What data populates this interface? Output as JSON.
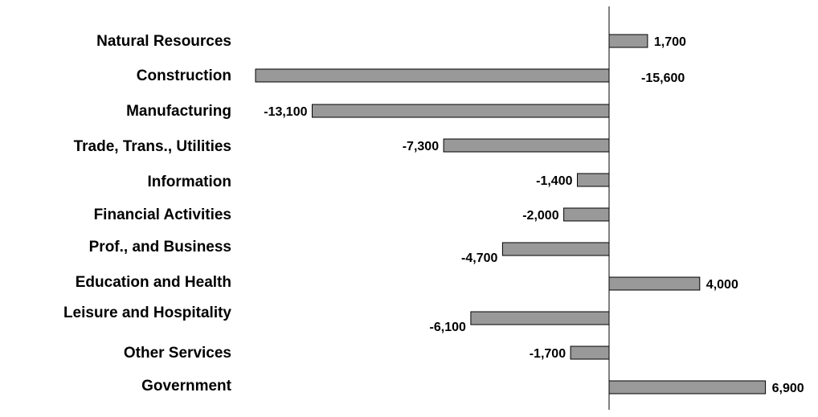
{
  "chart_data": {
    "type": "bar",
    "orientation": "horizontal",
    "categories": [
      "Natural Resources",
      "Construction",
      "Manufacturing",
      "Trade, Trans., Utilities",
      "Information",
      "Financial Activities",
      "Prof., and Business",
      "Education and Health",
      "Leisure and Hospitality",
      "Other Services",
      "Government"
    ],
    "values": [
      1700,
      -15600,
      -13100,
      -7300,
      -1400,
      -2000,
      -4700,
      4000,
      -6100,
      -1700,
      6900
    ],
    "value_labels": [
      "1,700",
      "-15,600",
      "-13,100",
      "-7,300",
      "-1,400",
      "-2,000",
      "-4,700",
      "4,000",
      "-6,100",
      "-1,700",
      "6,900"
    ],
    "title": "",
    "xlabel": "",
    "ylabel": "",
    "xlim": [
      -15600,
      6900
    ],
    "grid": false,
    "legend": "none",
    "colors": {
      "bar_fill": "#999999",
      "bar_stroke": "#000000",
      "axis": "#000000"
    }
  }
}
